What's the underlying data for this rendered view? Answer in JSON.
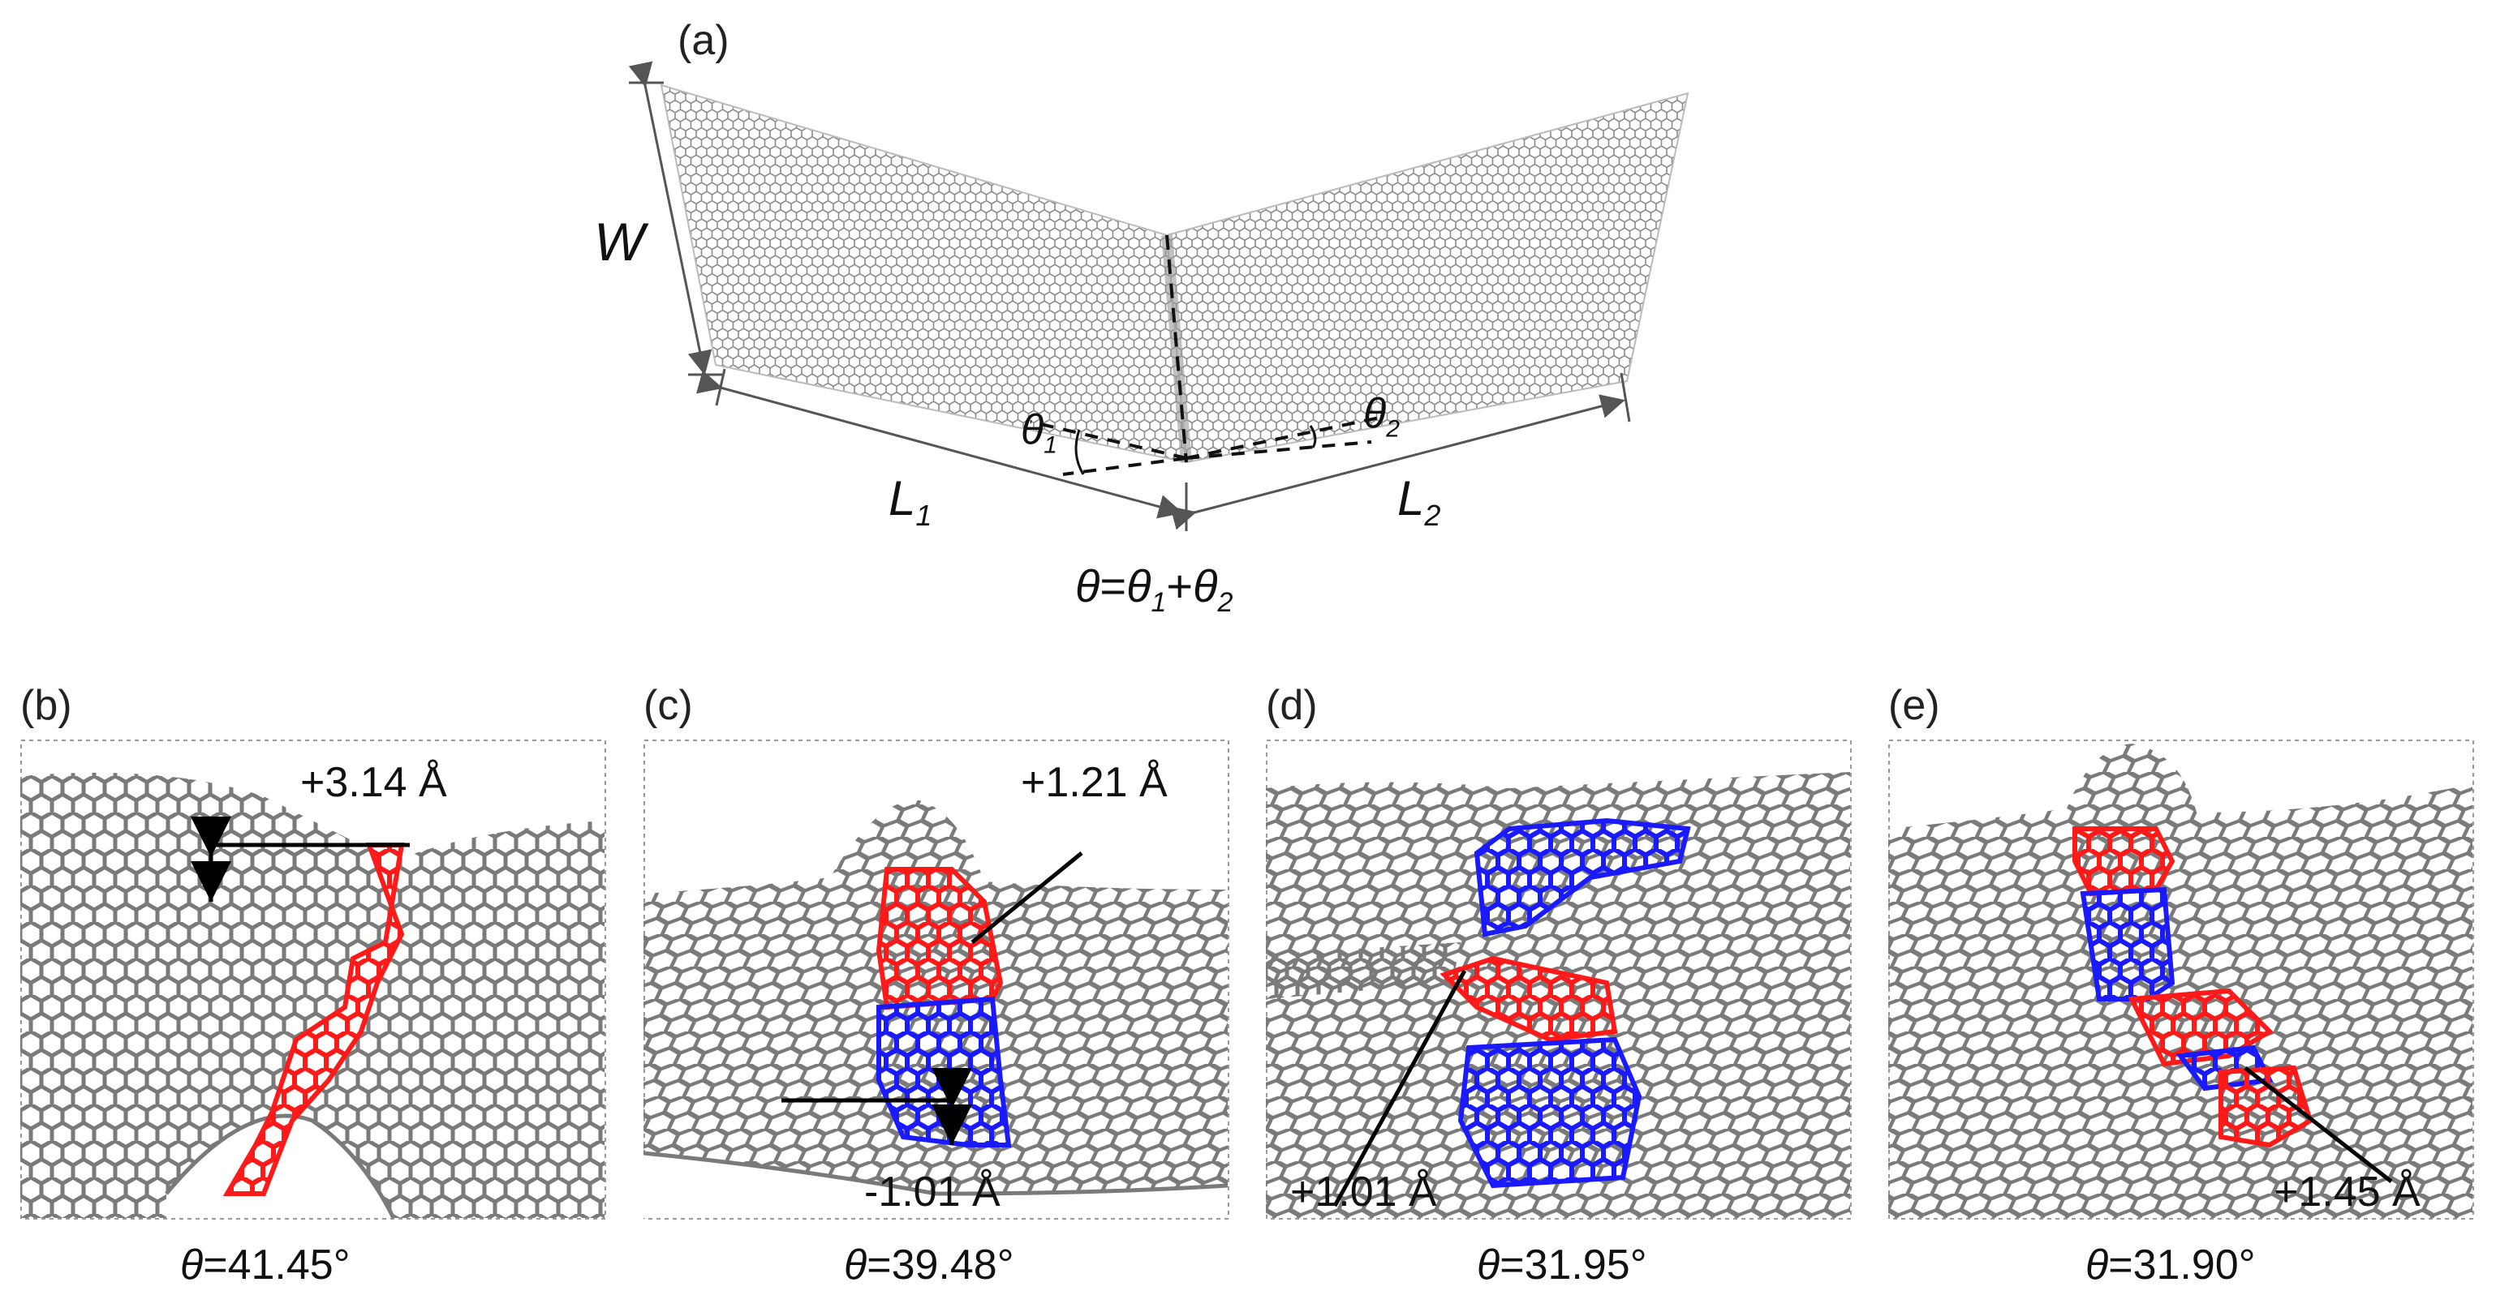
{
  "figure": {
    "panel_a": {
      "label": "(a)",
      "symbols": {
        "W": "W",
        "L1": "L",
        "L1_sub": "1",
        "L2": "L",
        "L2_sub": "2",
        "theta1": "θ",
        "theta1_sub": "1",
        "theta2": "θ",
        "theta2_sub": "2"
      },
      "equation": {
        "lhs": "θ",
        "eq": "=",
        "t1": "θ",
        "s1": "1",
        "plus": "+",
        "t2": "θ",
        "s2": "2"
      }
    },
    "panels": [
      {
        "id": "b",
        "label": "(b)",
        "annotation": "+3.14 Å",
        "caption_sym": "θ",
        "caption_val": "=41.45°"
      },
      {
        "id": "c",
        "label": "(c)",
        "annotation": "+1.21 Å",
        "annotation2": "-1.01 Å",
        "caption_sym": "θ",
        "caption_val": "=39.48°"
      },
      {
        "id": "d",
        "label": "(d)",
        "annotation": "+1.01 Å",
        "caption_sym": "θ",
        "caption_val": "=31.95°"
      },
      {
        "id": "e",
        "label": "(e)",
        "annotation": "+1.45 Å",
        "caption_sym": "θ",
        "caption_val": "=31.90°"
      }
    ],
    "colors": {
      "lattice": "#7a7a7a",
      "red": "#ff1a1a",
      "blue": "#1a1aff",
      "frame": "#9a9a9a"
    }
  }
}
